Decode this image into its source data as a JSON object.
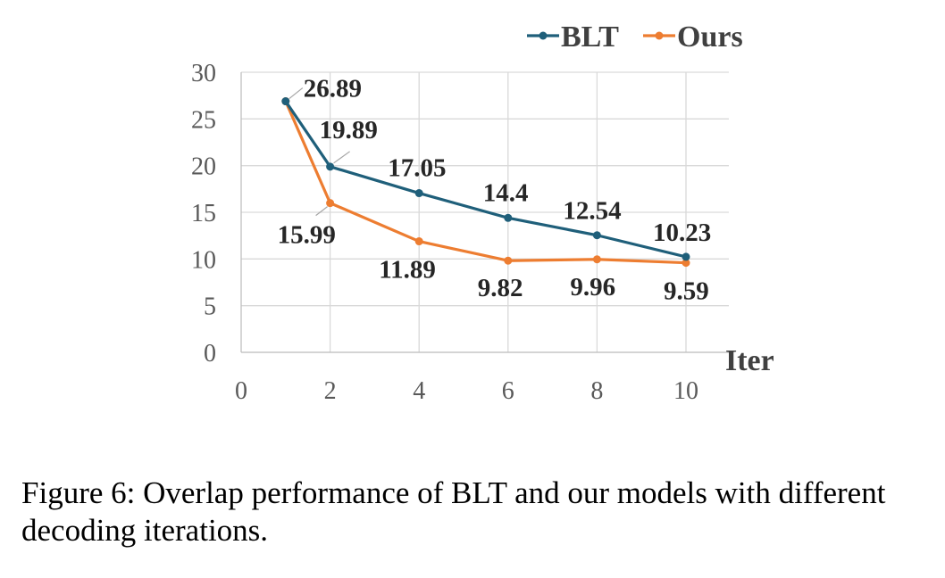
{
  "chart_data": {
    "type": "line",
    "xlabel": "Iter",
    "ylabel": "",
    "xlim": [
      0,
      10
    ],
    "ylim": [
      0,
      30
    ],
    "xticks": [
      0,
      2,
      4,
      6,
      8,
      10
    ],
    "yticks": [
      0,
      5,
      10,
      15,
      20,
      25,
      30
    ],
    "grid": "on",
    "legend_position": "top-right",
    "series": [
      {
        "name": "BLT",
        "color": "#1f5f7a",
        "x": [
          1,
          2,
          4,
          6,
          8,
          10
        ],
        "y": [
          26.89,
          19.89,
          17.05,
          14.4,
          12.54,
          10.23
        ],
        "labels": [
          "26.89",
          "19.89",
          "17.05",
          "14.4",
          "12.54",
          "10.23"
        ]
      },
      {
        "name": "Ours",
        "color": "#ed7d31",
        "x": [
          1,
          2,
          4,
          6,
          8,
          10
        ],
        "y": [
          26.89,
          15.99,
          11.89,
          9.82,
          9.96,
          9.59
        ],
        "labels": [
          "",
          "15.99",
          "11.89",
          "9.82",
          "9.96",
          "9.59"
        ]
      }
    ]
  },
  "caption": "Figure 6: Overlap performance of BLT and our models with different decoding iterations."
}
